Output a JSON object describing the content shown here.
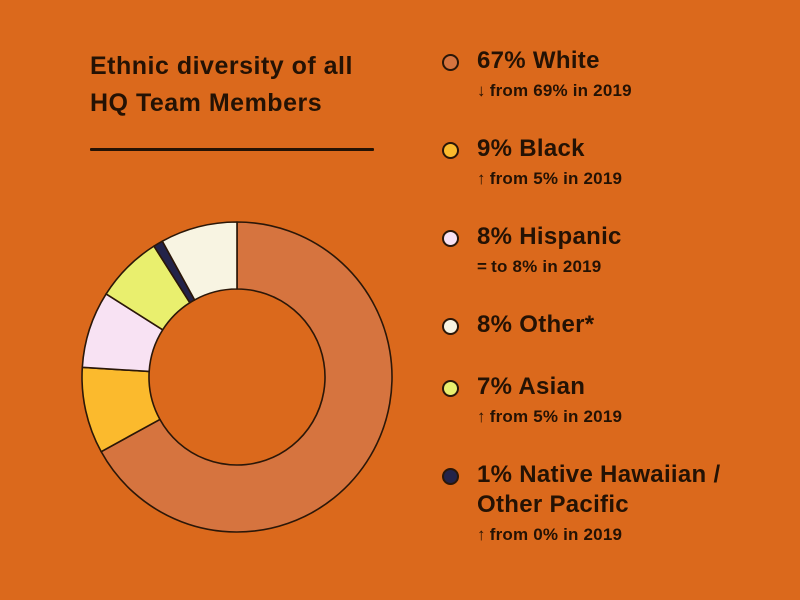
{
  "page": {
    "bg_color": "#DB691C",
    "text_color": "#241204",
    "stroke_color": "#2B1708"
  },
  "header": {
    "title_line1": "Ethnic diversity of all",
    "title_line2": "HQ Team Members"
  },
  "chart_data": {
    "type": "pie",
    "variant": "donut",
    "title": "Ethnic diversity of all HQ Team Members",
    "unit": "%",
    "start_angle_deg": 0,
    "direction": "clockwise",
    "outer_radius_px": 155,
    "inner_radius_px": 88,
    "stroke_color": "#2B1708",
    "hole_color": "#DB691C",
    "slices": [
      {
        "label": "White",
        "value": 67,
        "color": "#D6743F"
      },
      {
        "label": "Black",
        "value": 9,
        "color": "#FBBA2D"
      },
      {
        "label": "Hispanic",
        "value": 8,
        "color": "#F8E2F3"
      },
      {
        "label": "Asian",
        "value": 7,
        "color": "#E9EF6E"
      },
      {
        "label": "Native Hawaiian / Other Pacific",
        "value": 1,
        "color": "#232349"
      },
      {
        "label": "Other*",
        "value": 8,
        "color": "#F8F4E2"
      }
    ]
  },
  "legend": {
    "items": [
      {
        "id": "white",
        "label": "67% White",
        "color": "#D6743F",
        "change_symbol": "↓",
        "change_text": "from 69% in 2019"
      },
      {
        "id": "black",
        "label": "9% Black",
        "color": "#FBBA2D",
        "change_symbol": "↑",
        "change_text": "from 5% in 2019"
      },
      {
        "id": "hispanic",
        "label": "8% Hispanic",
        "color": "#F8E2F3",
        "change_symbol": "=",
        "change_text": "to 8% in 2019"
      },
      {
        "id": "other",
        "label": "8% Other*",
        "color": "#F8F4E2",
        "change_symbol": "",
        "change_text": ""
      },
      {
        "id": "asian",
        "label": "7% Asian",
        "color": "#E9EF6E",
        "change_symbol": "↑",
        "change_text": "from 5% in 2019"
      },
      {
        "id": "native-hawaiian",
        "label": "1% Native Hawaiian / Other Pacific",
        "color": "#232349",
        "change_symbol": "↑",
        "change_text": "from 0% in 2019"
      }
    ]
  }
}
